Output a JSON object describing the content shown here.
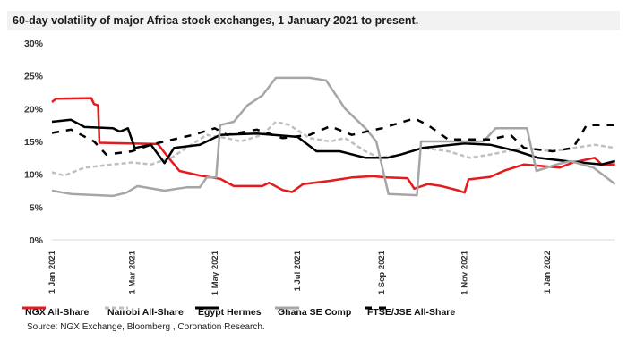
{
  "chart_data": {
    "type": "line",
    "title": "60-day volatility of major Africa stock exchanges, 1 January 2021 to present.",
    "xlabel": "",
    "ylabel": "",
    "ylim": [
      0,
      30
    ],
    "yticks": [
      "0%",
      "5%",
      "10%",
      "15%",
      "20%",
      "25%",
      "30%"
    ],
    "ytick_values": [
      0,
      5,
      10,
      15,
      20,
      25,
      30
    ],
    "xticks": [
      "1 Jan 2021",
      "1 Mar 2021",
      "1 May 2021",
      "1 Jul 2021",
      "1 Sep 2021",
      "1 Nov 2021",
      "1 Jan 2022"
    ],
    "xtick_dates": [
      "2021-01-01",
      "2021-03-01",
      "2021-05-01",
      "2021-07-01",
      "2021-09-01",
      "2021-11-01",
      "2022-01-01"
    ],
    "xlim": [
      "2021-01-01",
      "2022-02-20"
    ],
    "grid": false,
    "legend_position": "bottom",
    "series": [
      {
        "name": "NGX All-Share",
        "color": "#e41a1c",
        "style": "solid",
        "points": [
          [
            "2021-01-01",
            21.0
          ],
          [
            "2021-01-04",
            21.5
          ],
          [
            "2021-01-30",
            21.6
          ],
          [
            "2021-02-01",
            20.7
          ],
          [
            "2021-02-04",
            20.5
          ],
          [
            "2021-02-05",
            14.8
          ],
          [
            "2021-03-20",
            14.6
          ],
          [
            "2021-03-28",
            12.5
          ],
          [
            "2021-04-05",
            10.5
          ],
          [
            "2021-04-20",
            9.8
          ],
          [
            "2021-05-05",
            9.3
          ],
          [
            "2021-05-15",
            8.2
          ],
          [
            "2021-06-05",
            8.2
          ],
          [
            "2021-06-10",
            8.7
          ],
          [
            "2021-06-20",
            7.6
          ],
          [
            "2021-06-27",
            7.3
          ],
          [
            "2021-07-05",
            8.5
          ],
          [
            "2021-07-25",
            9.0
          ],
          [
            "2021-08-10",
            9.5
          ],
          [
            "2021-08-25",
            9.7
          ],
          [
            "2021-09-05",
            9.5
          ],
          [
            "2021-09-20",
            9.4
          ],
          [
            "2021-09-25",
            7.8
          ],
          [
            "2021-10-05",
            8.5
          ],
          [
            "2021-10-15",
            8.2
          ],
          [
            "2021-10-28",
            7.5
          ],
          [
            "2021-11-01",
            7.2
          ],
          [
            "2021-11-04",
            9.2
          ],
          [
            "2021-11-20",
            9.6
          ],
          [
            "2021-12-01",
            10.6
          ],
          [
            "2021-12-15",
            11.5
          ],
          [
            "2022-01-10",
            11.0
          ],
          [
            "2022-01-20",
            11.8
          ],
          [
            "2022-02-05",
            12.5
          ],
          [
            "2022-02-10",
            11.5
          ],
          [
            "2022-02-20",
            11.5
          ]
        ]
      },
      {
        "name": "Nairobi All-Share",
        "color": "#bfbfbf",
        "style": "dashed",
        "points": [
          [
            "2021-01-01",
            10.3
          ],
          [
            "2021-01-10",
            9.8
          ],
          [
            "2021-01-25",
            11.0
          ],
          [
            "2021-02-15",
            11.5
          ],
          [
            "2021-03-01",
            11.8
          ],
          [
            "2021-03-15",
            11.5
          ],
          [
            "2021-03-30",
            12.5
          ],
          [
            "2021-04-10",
            14.0
          ],
          [
            "2021-04-25",
            16.0
          ],
          [
            "2021-05-10",
            15.5
          ],
          [
            "2021-05-20",
            15.0
          ],
          [
            "2021-06-05",
            16.0
          ],
          [
            "2021-06-15",
            18.0
          ],
          [
            "2021-06-25",
            17.5
          ],
          [
            "2021-07-10",
            15.5
          ],
          [
            "2021-07-25",
            15.0
          ],
          [
            "2021-08-05",
            15.5
          ],
          [
            "2021-08-20",
            13.5
          ],
          [
            "2021-08-30",
            12.5
          ],
          [
            "2021-09-15",
            13.0
          ],
          [
            "2021-10-01",
            14.0
          ],
          [
            "2021-10-20",
            13.5
          ],
          [
            "2021-11-05",
            12.5
          ],
          [
            "2021-11-20",
            13.0
          ],
          [
            "2021-12-15",
            14.0
          ],
          [
            "2022-01-05",
            13.5
          ],
          [
            "2022-02-05",
            14.5
          ],
          [
            "2022-02-20",
            14.0
          ]
        ]
      },
      {
        "name": "Egypt Hermes",
        "color": "#000000",
        "style": "solid",
        "points": [
          [
            "2021-01-01",
            18.0
          ],
          [
            "2021-01-15",
            18.3
          ],
          [
            "2021-01-25",
            17.2
          ],
          [
            "2021-02-15",
            17.0
          ],
          [
            "2021-02-20",
            16.5
          ],
          [
            "2021-02-26",
            17.0
          ],
          [
            "2021-03-03",
            14.0
          ],
          [
            "2021-03-15",
            14.5
          ],
          [
            "2021-03-25",
            11.7
          ],
          [
            "2021-04-01",
            14.0
          ],
          [
            "2021-04-20",
            14.5
          ],
          [
            "2021-05-05",
            16.0
          ],
          [
            "2021-06-01",
            16.2
          ],
          [
            "2021-07-01",
            15.7
          ],
          [
            "2021-07-15",
            13.5
          ],
          [
            "2021-08-01",
            13.5
          ],
          [
            "2021-08-20",
            12.5
          ],
          [
            "2021-09-05",
            12.5
          ],
          [
            "2021-09-15",
            13.0
          ],
          [
            "2021-10-01",
            14.0
          ],
          [
            "2021-11-01",
            14.7
          ],
          [
            "2021-11-20",
            14.5
          ],
          [
            "2021-12-10",
            13.5
          ],
          [
            "2021-12-25",
            12.5
          ],
          [
            "2022-01-15",
            12.0
          ],
          [
            "2022-02-10",
            11.5
          ],
          [
            "2022-02-20",
            12.0
          ]
        ]
      },
      {
        "name": "Ghana SE Comp",
        "color": "#a6a6a6",
        "style": "solid",
        "points": [
          [
            "2021-01-01",
            7.5
          ],
          [
            "2021-01-15",
            7.0
          ],
          [
            "2021-02-15",
            6.7
          ],
          [
            "2021-02-25",
            7.2
          ],
          [
            "2021-03-05",
            8.2
          ],
          [
            "2021-03-25",
            7.5
          ],
          [
            "2021-04-10",
            8.0
          ],
          [
            "2021-04-20",
            8.0
          ],
          [
            "2021-04-25",
            9.5
          ],
          [
            "2021-05-02",
            9.5
          ],
          [
            "2021-05-05",
            17.5
          ],
          [
            "2021-05-15",
            18.0
          ],
          [
            "2021-05-25",
            20.5
          ],
          [
            "2021-06-05",
            22.0
          ],
          [
            "2021-06-15",
            24.7
          ],
          [
            "2021-07-10",
            24.7
          ],
          [
            "2021-07-22",
            24.3
          ],
          [
            "2021-08-05",
            20.0
          ],
          [
            "2021-08-20",
            17.0
          ],
          [
            "2021-08-28",
            15.0
          ],
          [
            "2021-09-06",
            7.0
          ],
          [
            "2021-09-27",
            6.8
          ],
          [
            "2021-09-30",
            15.0
          ],
          [
            "2021-11-15",
            15.0
          ],
          [
            "2021-11-24",
            17.0
          ],
          [
            "2021-12-17",
            17.0
          ],
          [
            "2021-12-24",
            10.5
          ],
          [
            "2022-01-08",
            11.5
          ],
          [
            "2022-01-18",
            12.0
          ],
          [
            "2022-02-04",
            11.0
          ],
          [
            "2022-02-20",
            8.5
          ]
        ]
      },
      {
        "name": "FTSE/JSE All-Share",
        "color": "#000000",
        "style": "dashed",
        "points": [
          [
            "2021-01-01",
            16.3
          ],
          [
            "2021-01-15",
            16.8
          ],
          [
            "2021-02-01",
            15.0
          ],
          [
            "2021-02-10",
            13.0
          ],
          [
            "2021-03-01",
            13.5
          ],
          [
            "2021-03-15",
            14.5
          ],
          [
            "2021-03-25",
            15.0
          ],
          [
            "2021-04-15",
            16.0
          ],
          [
            "2021-05-01",
            17.0
          ],
          [
            "2021-05-10",
            16.0
          ],
          [
            "2021-06-01",
            16.8
          ],
          [
            "2021-06-20",
            15.5
          ],
          [
            "2021-07-10",
            16.0
          ],
          [
            "2021-07-25",
            17.3
          ],
          [
            "2021-08-10",
            16.0
          ],
          [
            "2021-09-01",
            17.0
          ],
          [
            "2021-09-25",
            18.5
          ],
          [
            "2021-10-05",
            17.5
          ],
          [
            "2021-10-20",
            15.3
          ],
          [
            "2021-11-20",
            15.3
          ],
          [
            "2021-12-05",
            16.0
          ],
          [
            "2021-12-15",
            14.0
          ],
          [
            "2022-01-05",
            13.5
          ],
          [
            "2022-01-20",
            14.0
          ],
          [
            "2022-01-30",
            17.5
          ],
          [
            "2022-02-20",
            17.5
          ]
        ]
      }
    ],
    "source": "Source: NGX Exchange,  Bloomberg , Coronation Research."
  }
}
